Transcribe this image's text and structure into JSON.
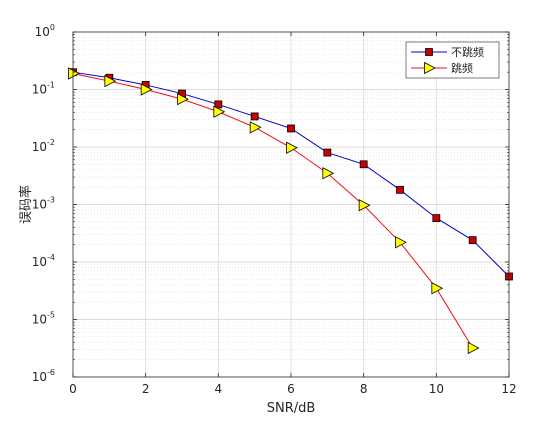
{
  "chart_data": {
    "type": "line",
    "title": "",
    "xlabel": "SNR/dB",
    "ylabel": "误码率",
    "x": [
      0,
      1,
      2,
      3,
      4,
      5,
      6,
      7,
      8,
      9,
      10,
      11,
      12
    ],
    "xlim": [
      0,
      12
    ],
    "xticks": [
      0,
      2,
      4,
      6,
      8,
      10,
      12
    ],
    "yscale": "log",
    "ylim": [
      1e-06,
      1
    ],
    "yticks": [
      {
        "base": "10",
        "exp": "0"
      },
      {
        "base": "10",
        "exp": "-1"
      },
      {
        "base": "10",
        "exp": "-2"
      },
      {
        "base": "10",
        "exp": "-3"
      },
      {
        "base": "10",
        "exp": "-4"
      },
      {
        "base": "10",
        "exp": "-5"
      },
      {
        "base": "10",
        "exp": "-6"
      }
    ],
    "grid": true,
    "legend_position": "top-right",
    "series": [
      {
        "name": "不跳频",
        "color": "#0000cc",
        "marker": "square",
        "marker_fill": "#cc0000",
        "x": [
          0,
          1,
          2,
          3,
          4,
          5,
          6,
          7,
          8,
          9,
          10,
          11,
          12
        ],
        "values": [
          0.2,
          0.16,
          0.12,
          0.085,
          0.055,
          0.034,
          0.021,
          0.008,
          0.005,
          0.0018,
          0.00058,
          0.00024,
          5.6e-05
        ]
      },
      {
        "name": "跳频",
        "color": "#ee1111",
        "marker": "triangle-right",
        "marker_fill": "#ffff00",
        "x": [
          0,
          1,
          2,
          3,
          4,
          5,
          6,
          7,
          8,
          9,
          10,
          11
        ],
        "values": [
          0.19,
          0.14,
          0.1,
          0.068,
          0.041,
          0.022,
          0.0097,
          0.0035,
          0.00097,
          0.00022,
          3.5e-05,
          3.2e-06
        ]
      }
    ]
  }
}
